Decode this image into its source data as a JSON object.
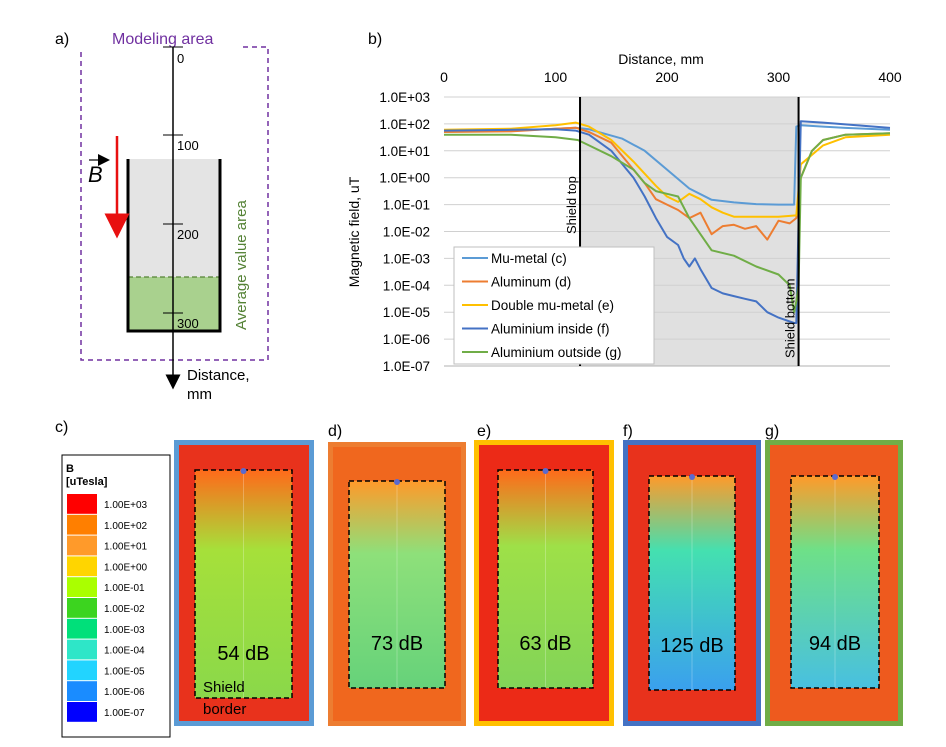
{
  "panel_a": {
    "label": "a)",
    "modeling_area": "Modeling area",
    "avg_area": "Average value area",
    "b_symbol": "B",
    "axis_ticks": [
      "0",
      "100",
      "200",
      "300"
    ],
    "axis_label_1": "Distance,",
    "axis_label_2": "mm"
  },
  "panel_b_label": "b)",
  "panel_c_label": "c)",
  "chart_data": {
    "type": "line",
    "title": "",
    "xlabel": "Distance, mm",
    "ylabel": "Magnetic field, uT",
    "xlim": [
      0,
      400
    ],
    "ylim_log10": [
      -7,
      3
    ],
    "x_ticks": [
      "0",
      "100",
      "200",
      "300",
      "400"
    ],
    "y_ticks": [
      "1.0E+03",
      "1.0E+02",
      "1.0E+01",
      "1.0E+00",
      "1.0E-01",
      "1.0E-02",
      "1.0E-03",
      "1.0E-04",
      "1.0E-05",
      "1.0E-06",
      "1.0E-07"
    ],
    "shaded_region": [
      122,
      318
    ],
    "annotations": [
      {
        "x": 122,
        "text": "Shield top"
      },
      {
        "x": 318,
        "text": "Shield bottom"
      }
    ],
    "legend_position": "bottom-left",
    "series": [
      {
        "name": "Mu-metal (c)",
        "color": "#5b9bd5",
        "x": [
          0,
          60,
          100,
          118,
          130,
          160,
          180,
          200,
          220,
          240,
          260,
          280,
          300,
          314,
          316,
          320,
          340,
          360,
          400
        ],
        "log10": [
          1.72,
          1.74,
          1.82,
          1.86,
          1.8,
          1.45,
          1.0,
          0.3,
          -0.4,
          -0.82,
          -0.92,
          -0.98,
          -1.0,
          -1.0,
          1.9,
          1.95,
          1.9,
          1.85,
          1.78
        ]
      },
      {
        "name": "Aluminum (d)",
        "color": "#ed7d31",
        "x": [
          0,
          60,
          100,
          118,
          130,
          150,
          170,
          180,
          190,
          200,
          210,
          220,
          230,
          240,
          250,
          260,
          270,
          280,
          290,
          300,
          310,
          316,
          320,
          330,
          340,
          360,
          400
        ],
        "log10": [
          1.7,
          1.72,
          1.82,
          1.86,
          1.7,
          1.3,
          0.3,
          -0.2,
          -0.8,
          -1.0,
          -1.2,
          -1.5,
          -1.3,
          -2.1,
          -1.8,
          -1.75,
          -1.9,
          -1.8,
          -2.3,
          -1.6,
          -1.7,
          -1.5,
          0.0,
          1.0,
          1.4,
          1.6,
          1.65
        ]
      },
      {
        "name": "Double mu-metal (e)",
        "color": "#ffc000",
        "x": [
          0,
          60,
          100,
          118,
          130,
          150,
          170,
          190,
          200,
          210,
          220,
          230,
          240,
          250,
          260,
          280,
          300,
          316,
          320,
          340,
          360,
          400
        ],
        "log10": [
          1.78,
          1.82,
          1.95,
          2.05,
          1.9,
          1.4,
          0.6,
          -0.3,
          -0.7,
          -0.9,
          -0.6,
          -0.8,
          -1.1,
          -1.3,
          -1.45,
          -1.45,
          -1.45,
          -1.4,
          0.5,
          1.2,
          1.5,
          1.6
        ]
      },
      {
        "name": "Aluminium inside (f)",
        "color": "#4472c4",
        "x": [
          0,
          60,
          100,
          118,
          130,
          150,
          170,
          180,
          190,
          200,
          210,
          215,
          220,
          225,
          230,
          240,
          250,
          260,
          270,
          280,
          290,
          300,
          314,
          316,
          320,
          340,
          360,
          400
        ],
        "log10": [
          1.75,
          1.78,
          1.8,
          1.75,
          1.6,
          1.0,
          0.0,
          -0.7,
          -1.5,
          -2.2,
          -2.5,
          -3.0,
          -3.3,
          -3.0,
          -3.4,
          -4.1,
          -4.3,
          -4.4,
          -4.5,
          -4.6,
          -5.0,
          -5.2,
          -5.4,
          -5.4,
          2.1,
          2.05,
          1.98,
          1.85
        ]
      },
      {
        "name": "Aluminium outside (g)",
        "color": "#70ad47",
        "x": [
          0,
          60,
          100,
          120,
          130,
          150,
          170,
          180,
          190,
          200,
          210,
          220,
          240,
          260,
          280,
          300,
          310,
          314,
          316,
          318,
          320,
          330,
          340,
          360,
          400
        ],
        "log10": [
          1.6,
          1.6,
          1.5,
          1.4,
          1.2,
          0.8,
          0.3,
          -0.2,
          -0.5,
          -0.6,
          -0.7,
          -1.5,
          -2.7,
          -2.9,
          -3.3,
          -3.6,
          -4.0,
          -5.0,
          -4.6,
          -4.0,
          0.0,
          1.0,
          1.4,
          1.6,
          1.65
        ]
      }
    ]
  },
  "colorbar": {
    "title_1": "B",
    "title_2": "[uTesla]",
    "entries": [
      {
        "label": "1.00E+03",
        "color": "#ff0000"
      },
      {
        "label": "1.00E+02",
        "color": "#ff7f00"
      },
      {
        "label": "1.00E+01",
        "color": "#ff9a2a"
      },
      {
        "label": "1.00E+00",
        "color": "#ffd500"
      },
      {
        "label": "1.00E-01",
        "color": "#aaff00"
      },
      {
        "label": "1.00E-02",
        "color": "#3cd41f"
      },
      {
        "label": "1.00E-03",
        "color": "#00e07a"
      },
      {
        "label": "1.00E-04",
        "color": "#2ee6c8"
      },
      {
        "label": "1.00E-05",
        "color": "#22d4ff"
      },
      {
        "label": "1.00E-06",
        "color": "#1a8cff"
      },
      {
        "label": "1.00E-07",
        "color": "#0000ff"
      }
    ]
  },
  "maps": [
    {
      "label": "",
      "db": "54 dB",
      "frame": "#5b9bd5",
      "bg": "#e8321c",
      "inner_top": "#ff6a1a",
      "inner_mid": "#a6e03a",
      "inner_bot": "#8ad84a",
      "shield_1": "Shield",
      "shield_2": "border"
    },
    {
      "label": "d)",
      "db": "73 dB",
      "frame": "#ed7d31",
      "bg": "#f0671e",
      "inner_top": "#ff9a2a",
      "inner_mid": "#8ee07a",
      "inner_bot": "#66d27a"
    },
    {
      "label": "e)",
      "db": "63 dB",
      "frame": "#ffc000",
      "bg": "#ec2a17",
      "inner_top": "#ff6a1a",
      "inner_mid": "#9ee048",
      "inner_bot": "#82d458"
    },
    {
      "label": "f)",
      "db": "125 dB",
      "frame": "#4472c4",
      "bg": "#e8321c",
      "inner_top": "#ff9a2a",
      "inner_mid": "#44e0b0",
      "inner_bot": "#3aa0ee"
    },
    {
      "label": "g)",
      "db": "94 dB",
      "frame": "#70ad47",
      "bg": "#ee5a1e",
      "inner_top": "#ff9a2a",
      "inner_mid": "#6ee088",
      "inner_bot": "#48c0e0"
    }
  ]
}
